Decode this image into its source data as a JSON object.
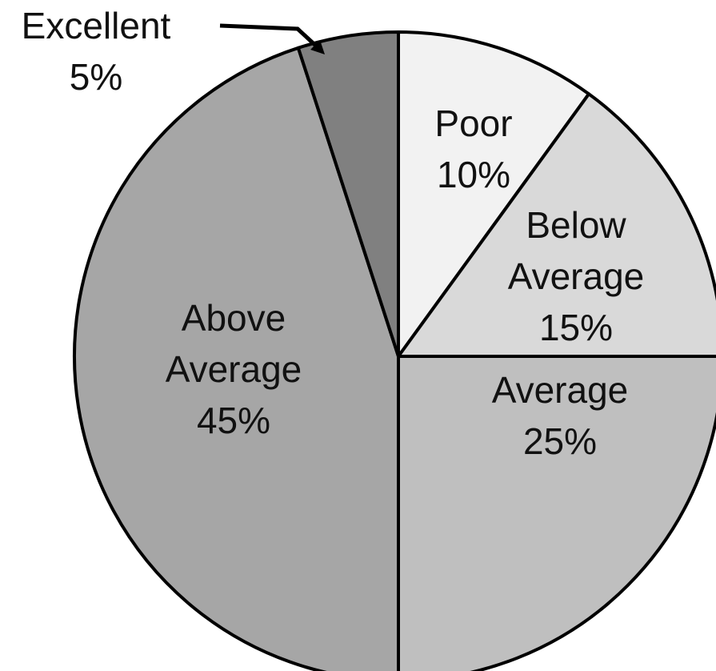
{
  "chart_data": {
    "type": "pie",
    "title": "",
    "start_angle_deg": 0,
    "direction": "clockwise",
    "slices": [
      {
        "label": [
          "Poor"
        ],
        "value_label": "10%",
        "value": 10,
        "color": "#f2f2f2"
      },
      {
        "label": [
          "Below",
          "Average"
        ],
        "value_label": "15%",
        "value": 15,
        "color": "#d9d9d9"
      },
      {
        "label": [
          "Average"
        ],
        "value_label": "25%",
        "value": 25,
        "color": "#bfbfbf"
      },
      {
        "label": [
          "Above",
          "Average"
        ],
        "value_label": "45%",
        "value": 45,
        "color": "#a6a6a6"
      },
      {
        "label": [
          "Excellent"
        ],
        "value_label": "5%",
        "value": 5,
        "color": "#808080"
      }
    ]
  }
}
